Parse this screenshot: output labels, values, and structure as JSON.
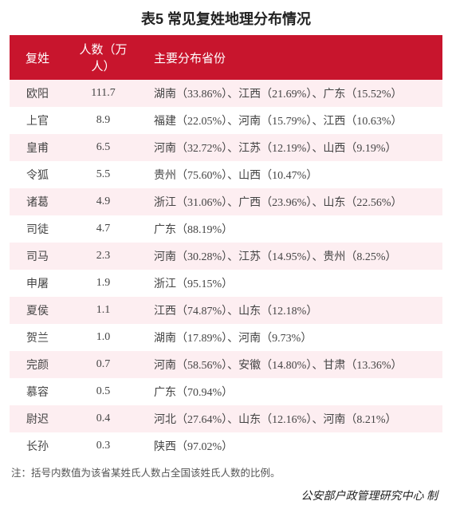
{
  "title": "表5  常见复姓地理分布情况",
  "columns": {
    "surname": "复姓",
    "count": "人数（万人）",
    "distribution": "主要分布省份"
  },
  "rows": [
    {
      "surname": "欧阳",
      "count": "111.7",
      "distribution": "湖南（33.86%）、江西（21.69%）、广东（15.52%）"
    },
    {
      "surname": "上官",
      "count": "8.9",
      "distribution": "福建（22.05%）、河南（15.79%）、江西（10.63%）"
    },
    {
      "surname": "皇甫",
      "count": "6.5",
      "distribution": "河南（32.72%）、江苏（12.19%）、山西（9.19%）"
    },
    {
      "surname": "令狐",
      "count": "5.5",
      "distribution": "贵州（75.60%）、山西（10.47%）"
    },
    {
      "surname": "诸葛",
      "count": "4.9",
      "distribution": "浙江（31.06%）、广西（23.96%）、山东（22.56%）"
    },
    {
      "surname": "司徒",
      "count": "4.7",
      "distribution": "广东（88.19%）"
    },
    {
      "surname": "司马",
      "count": "2.3",
      "distribution": "河南（30.28%）、江苏（14.95%）、贵州（8.25%）"
    },
    {
      "surname": "申屠",
      "count": "1.9",
      "distribution": "浙江（95.15%）"
    },
    {
      "surname": "夏侯",
      "count": "1.1",
      "distribution": "江西（74.87%）、山东（12.18%）"
    },
    {
      "surname": "贺兰",
      "count": "1.0",
      "distribution": "湖南（17.89%）、河南（9.73%）"
    },
    {
      "surname": "完颜",
      "count": "0.7",
      "distribution": "河南（58.56%）、安徽（14.80%）、甘肃（13.36%）"
    },
    {
      "surname": "慕容",
      "count": "0.5",
      "distribution": "广东（70.94%）"
    },
    {
      "surname": "尉迟",
      "count": "0.4",
      "distribution": "河北（27.64%）、山东（12.16%）、河南（8.21%）"
    },
    {
      "surname": "长孙",
      "count": "0.3",
      "distribution": "陕西（97.02%）"
    }
  ],
  "footnote": "注：括号内数值为该省某姓氏人数占全国该姓氏人数的比例。",
  "source": "公安部户政管理研究中心 制",
  "style": {
    "header_bg": "#c8152d",
    "header_fg": "#ffffff",
    "row_even_bg": "#fdeef1",
    "row_odd_bg": "#ffffff",
    "title_fontsize": 18,
    "body_fontsize": 14,
    "footnote_fontsize": 12.5
  }
}
